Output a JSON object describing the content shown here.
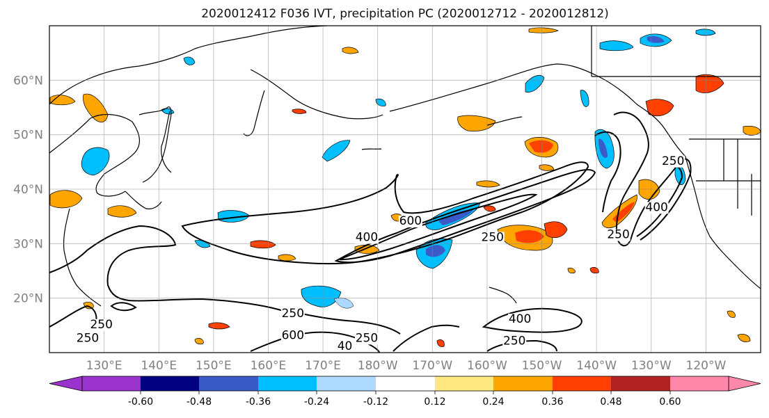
{
  "title": "2020012412 F036 IVT, precipitation PC (2020012712 - 2020012812)",
  "map": {
    "lon_range": [
      120,
      250
    ],
    "lat_range": [
      10,
      70
    ],
    "lon_ticks": [
      {
        "lon": 130,
        "label": "130°E"
      },
      {
        "lon": 140,
        "label": "140°E"
      },
      {
        "lon": 150,
        "label": "150°E"
      },
      {
        "lon": 160,
        "label": "160°E"
      },
      {
        "lon": 170,
        "label": "170°E"
      },
      {
        "lon": 180,
        "label": "180°W"
      },
      {
        "lon": 190,
        "label": "170°W"
      },
      {
        "lon": 200,
        "label": "160°W"
      },
      {
        "lon": 210,
        "label": "150°W"
      },
      {
        "lon": 220,
        "label": "140°W"
      },
      {
        "lon": 230,
        "label": "130°W"
      },
      {
        "lon": 240,
        "label": "120°W"
      }
    ],
    "lat_ticks": [
      {
        "lat": 20,
        "label": "20°N"
      },
      {
        "lat": 30,
        "label": "30°N"
      },
      {
        "lat": 40,
        "label": "40°N"
      },
      {
        "lat": 50,
        "label": "50°N"
      },
      {
        "lat": 60,
        "label": "60°N"
      }
    ],
    "grid_lons": [
      130,
      140,
      150,
      160,
      170,
      180,
      190,
      200,
      210,
      220,
      230,
      240
    ],
    "grid_lats": [
      20,
      30,
      40,
      50,
      60
    ],
    "grid": true,
    "contour_labels": [
      {
        "text": "250",
        "lon": 129.5,
        "lat": 14.5
      },
      {
        "text": "250",
        "lon": 127,
        "lat": 12
      },
      {
        "text": "250",
        "lon": 164.5,
        "lat": 16.5
      },
      {
        "text": "600",
        "lon": 164.5,
        "lat": 12.5
      },
      {
        "text": "40",
        "lon": 174,
        "lat": 10.5
      },
      {
        "text": "250",
        "lon": 178,
        "lat": 12
      },
      {
        "text": "400",
        "lon": 178,
        "lat": 30.5
      },
      {
        "text": "600",
        "lon": 186,
        "lat": 33.5
      },
      {
        "text": "250",
        "lon": 201,
        "lat": 30.5
      },
      {
        "text": "400",
        "lon": 206,
        "lat": 15.5
      },
      {
        "text": "250",
        "lon": 205,
        "lat": 11.5
      },
      {
        "text": "250",
        "lon": 234,
        "lat": 44.5
      },
      {
        "text": "400",
        "lon": 231,
        "lat": 36
      },
      {
        "text": "250",
        "lon": 224,
        "lat": 31
      }
    ]
  },
  "colorbar": {
    "colors": [
      "#9933cc",
      "#000080",
      "#3a5bc7",
      "#00bfff",
      "#add8ff",
      "#ffffff",
      "#ffe880",
      "#ffa500",
      "#ff4000",
      "#b22222",
      "#ff88aa"
    ],
    "tick_labels": [
      "-0.60",
      "-0.48",
      "-0.36",
      "-0.24",
      "-0.12",
      "0.12",
      "0.24",
      "0.36",
      "0.48",
      "0.60"
    ]
  }
}
